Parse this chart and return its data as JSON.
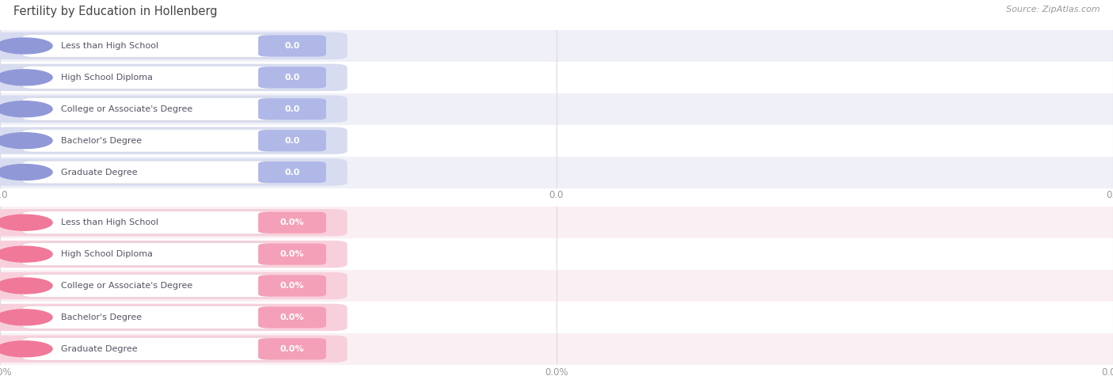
{
  "title": "Fertility by Education in Hollenberg",
  "source": "Source: ZipAtlas.com",
  "categories": [
    "Less than High School",
    "High School Diploma",
    "College or Associate's Degree",
    "Bachelor's Degree",
    "Graduate Degree"
  ],
  "top_values": [
    0.0,
    0.0,
    0.0,
    0.0,
    0.0
  ],
  "bottom_values": [
    0.0,
    0.0,
    0.0,
    0.0,
    0.0
  ],
  "top_bar_color": "#b0b8e8",
  "top_circle_color": "#9098d8",
  "top_bar_bg": "#d8dcf0",
  "bottom_bar_color": "#f4a0b8",
  "bottom_circle_color": "#f07898",
  "bottom_bar_bg": "#f8d0dc",
  "row_bg_even": "#f0f0f8",
  "row_bg_odd": "#ffffff",
  "row_bg_even_bot": "#faf0f4",
  "row_bg_odd_bot": "#ffffff",
  "label_text_color": "#555566",
  "value_text_color": "#ffffff",
  "grid_color": "#dddddd",
  "axis_tick_color": "#999999",
  "background_color": "#ffffff",
  "title_color": "#444444",
  "source_color": "#999999"
}
